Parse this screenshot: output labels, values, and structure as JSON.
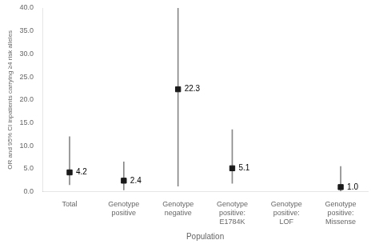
{
  "chart_data": {
    "type": "scatter",
    "xlabel": "Population",
    "ylabel": "OR and 95% CI inpatients carrying ≥4 risk alleles",
    "categories": [
      "Total",
      "Genotype positive",
      "Genotype negative",
      "Genotype positive:\nE1784K",
      "Genotype positive:\nLOF",
      "Genotype positive:\nMissense"
    ],
    "values": [
      4.2,
      2.4,
      22.3,
      5.1,
      null,
      1.0
    ],
    "value_labels": [
      "4.2",
      "2.4",
      "22.3",
      "5.1",
      null,
      "1.0"
    ],
    "ci_lower": [
      1.5,
      0.4,
      1.2,
      1.8,
      null,
      0.15
    ],
    "ci_upper": [
      12.0,
      6.5,
      40.0,
      13.5,
      null,
      5.5
    ],
    "color": "#1a1a1a",
    "marker": "square",
    "ylim": [
      0.0,
      40.0
    ],
    "yticks": [
      {
        "value": 0,
        "label": "0.0"
      },
      {
        "value": 5,
        "label": "5.0"
      },
      {
        "value": 10,
        "label": "10.0"
      },
      {
        "value": 15,
        "label": "15.0"
      },
      {
        "value": 20,
        "label": "20.0"
      },
      {
        "value": 25,
        "label": "25.0"
      },
      {
        "value": 30,
        "label": "30.0"
      },
      {
        "value": 35,
        "label": "35.0"
      },
      {
        "value": 40,
        "label": "40.0"
      }
    ],
    "grid": false,
    "data_labels": true
  }
}
